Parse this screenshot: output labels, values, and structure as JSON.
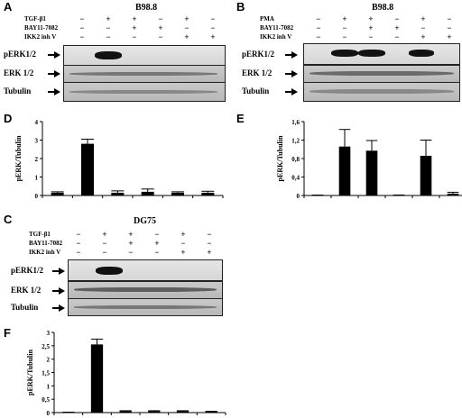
{
  "figure": {
    "panel_a": {
      "letter": "A",
      "title": "B98.8",
      "treatments": [
        {
          "label": "TGF-β1",
          "signs": [
            "−",
            "+",
            "+",
            "−",
            "+",
            "−"
          ]
        },
        {
          "label": "BAY11-7082",
          "signs": [
            "−",
            "−",
            "+",
            "+",
            "−",
            "−"
          ]
        },
        {
          "label": "IKK2 inh V",
          "signs": [
            "−",
            "−",
            "−",
            "−",
            "+",
            "+"
          ]
        }
      ],
      "blots": [
        "pERK1/2",
        "ERK 1/2",
        "Tubulin"
      ]
    },
    "panel_b": {
      "letter": "B",
      "title": "B98.8",
      "treatments": [
        {
          "label": "PMA",
          "signs": [
            "−",
            "+",
            "+",
            "−",
            "+",
            "−"
          ]
        },
        {
          "label": "BAY11-7082",
          "signs": [
            "−",
            "−",
            "+",
            "+",
            "−",
            "−"
          ]
        },
        {
          "label": "IKK2 inh V",
          "signs": [
            "−",
            "−",
            "−",
            "−",
            "+",
            "+"
          ]
        }
      ],
      "blots": [
        "pERK1/2",
        "ERK 1/2",
        "Tubulin"
      ]
    },
    "panel_c": {
      "letter": "C",
      "title": "DG75",
      "treatments": [
        {
          "label": "TGF-β1",
          "signs": [
            "−",
            "+",
            "+",
            "−",
            "+",
            "−"
          ]
        },
        {
          "label": "BAY11-7082",
          "signs": [
            "−",
            "−",
            "+",
            "+",
            "−",
            "−"
          ]
        },
        {
          "label": "IKK2 inh V",
          "signs": [
            "−",
            "−",
            "−",
            "−",
            "+",
            "+"
          ]
        }
      ],
      "blots": [
        "pERK1/2",
        "ERK 1/2",
        "Tubulin"
      ]
    }
  },
  "chart_data": [
    {
      "panel": "D",
      "type": "bar",
      "ylabel": "pERK/Tubulin",
      "xlabel": "",
      "ylim": [
        0,
        4
      ],
      "ytick_labels": [
        "0",
        "1",
        "2",
        "3",
        "4"
      ],
      "ytick_values": [
        0,
        1,
        2,
        3,
        4
      ],
      "values": [
        0.15,
        2.8,
        0.15,
        0.2,
        0.15,
        0.15
      ],
      "errors": [
        0.05,
        0.25,
        0.1,
        0.15,
        0.05,
        0.08
      ],
      "bar_color": "#000000"
    },
    {
      "panel": "E",
      "type": "bar",
      "ylabel": "pERK/Tubulin",
      "xlabel": "",
      "ylim": [
        0,
        1.6
      ],
      "ytick_labels": [
        "0",
        "0,4",
        "0,8",
        "1,2",
        "1,6"
      ],
      "ytick_values": [
        0,
        0.4,
        0.8,
        1.2,
        1.6
      ],
      "values": [
        0.01,
        1.06,
        0.97,
        0.02,
        0.86,
        0.04
      ],
      "errors": [
        0.0,
        0.37,
        0.22,
        0.0,
        0.34,
        0.03
      ],
      "bar_color": "#000000"
    },
    {
      "panel": "F",
      "type": "bar",
      "ylabel": "pERK/Tubulin",
      "xlabel": "",
      "ylim": [
        0,
        3
      ],
      "ytick_labels": [
        "0",
        "0,5",
        "1",
        "1,5",
        "2",
        "2,5",
        "3"
      ],
      "ytick_values": [
        0,
        0.5,
        1,
        1.5,
        2,
        2.5,
        3
      ],
      "values": [
        0.02,
        2.55,
        0.05,
        0.05,
        0.05,
        0.04
      ],
      "errors": [
        0.0,
        0.2,
        0.02,
        0.02,
        0.02,
        0.01
      ],
      "bar_color": "#000000"
    }
  ]
}
